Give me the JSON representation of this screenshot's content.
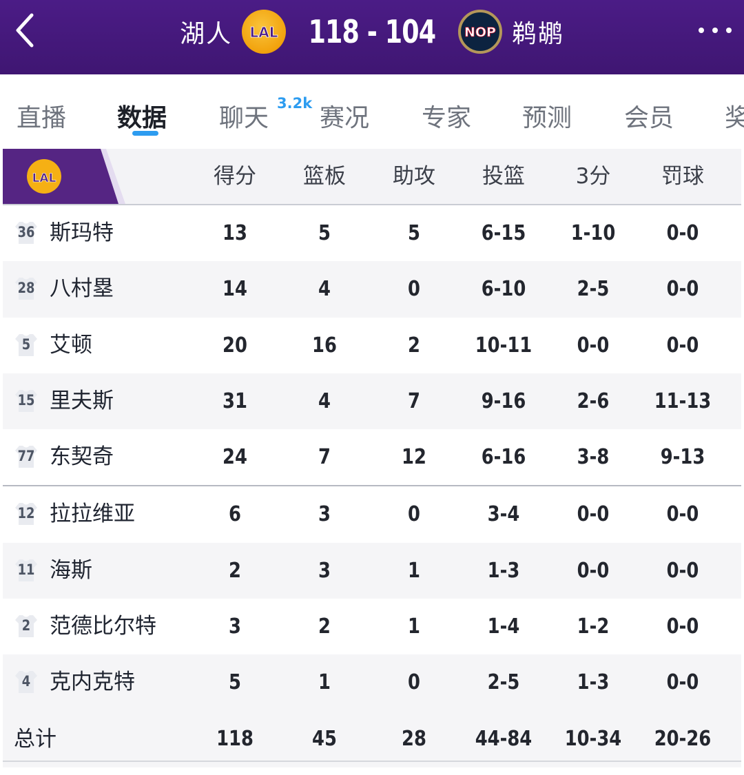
{
  "header": {
    "home_team": "湖人",
    "home_logo": "LAL",
    "score": "118 - 104",
    "away_logo": "NOP",
    "away_team": "鹈鹕",
    "back_icon": "chevron-left-icon",
    "more_icon": "more-dots-icon",
    "bg_color": "#4b1c86"
  },
  "tabs": [
    {
      "label": "直播"
    },
    {
      "label": "数据",
      "active": true
    },
    {
      "label": "聊天",
      "badge": "3.2k"
    },
    {
      "label": "赛况"
    },
    {
      "label": "专家"
    },
    {
      "label": "预测"
    },
    {
      "label": "会员"
    },
    {
      "label": "奖"
    }
  ],
  "accent_color": "#2d9cf0",
  "table": {
    "team_logo": "LAL",
    "columns": [
      "得分",
      "篮板",
      "助攻",
      "投篮",
      "3分",
      "罚球"
    ],
    "starters": [
      {
        "number": "36",
        "name": "斯玛特",
        "stats": [
          "13",
          "5",
          "5",
          "6-15",
          "1-10",
          "0-0"
        ]
      },
      {
        "number": "28",
        "name": "八村塁",
        "stats": [
          "14",
          "4",
          "0",
          "6-10",
          "2-5",
          "0-0"
        ]
      },
      {
        "number": "5",
        "name": "艾顿",
        "stats": [
          "20",
          "16",
          "2",
          "10-11",
          "0-0",
          "0-0"
        ]
      },
      {
        "number": "15",
        "name": "里夫斯",
        "stats": [
          "31",
          "4",
          "7",
          "9-16",
          "2-6",
          "11-13"
        ]
      },
      {
        "number": "77",
        "name": "东契奇",
        "stats": [
          "24",
          "7",
          "12",
          "6-16",
          "3-8",
          "9-13"
        ]
      }
    ],
    "bench": [
      {
        "number": "12",
        "name": "拉拉维亚",
        "stats": [
          "6",
          "3",
          "0",
          "3-4",
          "0-0",
          "0-0"
        ]
      },
      {
        "number": "11",
        "name": "海斯",
        "stats": [
          "2",
          "3",
          "1",
          "1-3",
          "0-0",
          "0-0"
        ]
      },
      {
        "number": "2",
        "name": "范德比尔特",
        "stats": [
          "3",
          "2",
          "1",
          "1-4",
          "1-2",
          "0-0"
        ]
      },
      {
        "number": "4",
        "name": "克内克特",
        "stats": [
          "5",
          "1",
          "0",
          "2-5",
          "1-3",
          "0-0"
        ]
      }
    ],
    "total": {
      "label": "总计",
      "stats": [
        "118",
        "45",
        "28",
        "44-84",
        "10-34",
        "20-26"
      ]
    }
  }
}
